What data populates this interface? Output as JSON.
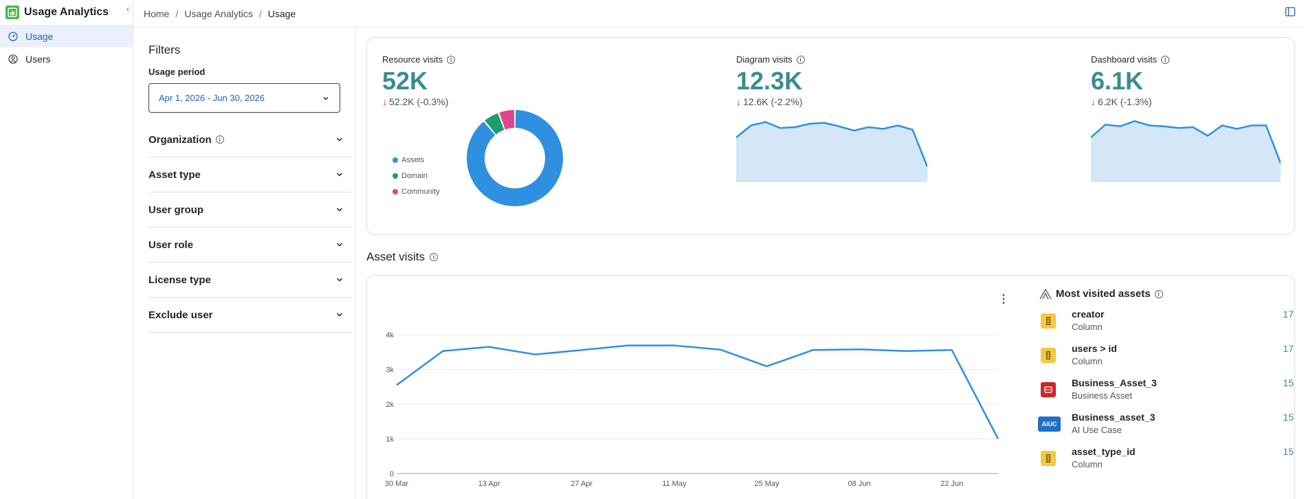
{
  "app": {
    "title": "Usage Analytics"
  },
  "sidebar": {
    "items": [
      {
        "label": "Usage",
        "active": true
      },
      {
        "label": "Users",
        "active": false
      }
    ]
  },
  "breadcrumb": {
    "home": "Home",
    "parent": "Usage Analytics",
    "current": "Usage",
    "separator": "/"
  },
  "filters": {
    "title": "Filters",
    "usage_period_label": "Usage period",
    "usage_period_value": "Apr 1, 2026 - Jun 30, 2026",
    "accordions": [
      {
        "label": "Organization",
        "has_info": true
      },
      {
        "label": "Asset type",
        "has_info": false
      },
      {
        "label": "User group",
        "has_info": false
      },
      {
        "label": "User role",
        "has_info": false
      },
      {
        "label": "License type",
        "has_info": false
      },
      {
        "label": "Exclude user",
        "has_info": false
      }
    ]
  },
  "metrics": {
    "resource": {
      "label": "Resource visits",
      "value": "52K",
      "delta": "52.2K (-0.3%)"
    },
    "diagram": {
      "label": "Diagram visits",
      "value": "12.3K",
      "delta": "12.6K (-2.2%)"
    },
    "dashboard": {
      "label": "Dashboard visits",
      "value": "6.1K",
      "delta": "6.2K (-1.3%)"
    }
  },
  "colors": {
    "accent": "#3b8c92",
    "primary": "#2f8fe0",
    "area_fill": "#d4e7f7",
    "down": "#d83a34",
    "assets": "#2f8fe0",
    "domain": "#1f9c6b",
    "community": "#e0448c"
  },
  "asset_visits": {
    "title": "Asset visits"
  },
  "most_visited": {
    "title": "Most visited assets",
    "items": [
      {
        "name": "creator",
        "type": "Column",
        "count": "17",
        "icon": "column-icon",
        "icon_color": "#f5c842",
        "badge": ""
      },
      {
        "name": "users > id",
        "type": "Column",
        "count": "17",
        "icon": "column-icon",
        "icon_color": "#f5c842",
        "badge": ""
      },
      {
        "name": "Business_Asset_3",
        "type": "Business Asset",
        "count": "15",
        "icon": "business-asset-icon",
        "icon_color": "#c8292b",
        "badge": ""
      },
      {
        "name": "Business_asset_3",
        "type": "AI Use Case",
        "count": "15",
        "icon": "ai-use-case-icon",
        "icon_color": "#1f6fc6",
        "badge": "AIUC"
      },
      {
        "name": "asset_type_id",
        "type": "Column",
        "count": "15",
        "icon": "column-icon",
        "icon_color": "#f5c842",
        "badge": ""
      }
    ]
  },
  "chart_data": [
    {
      "type": "pie",
      "categories": [
        "Assets",
        "Domain",
        "Community"
      ],
      "values": [
        89,
        5.5,
        5.5
      ],
      "donut": true,
      "legend": "left"
    },
    {
      "type": "area",
      "values": [
        5.2,
        6.6,
        7.0,
        6.3,
        6.4,
        6.8,
        6.9,
        6.5,
        6.0,
        6.4,
        6.2,
        6.6,
        6.1,
        1.8
      ],
      "grid": false
    },
    {
      "type": "area",
      "values": [
        5.2,
        6.7,
        6.5,
        7.1,
        6.6,
        6.5,
        6.3,
        6.4,
        5.4,
        6.6,
        6.2,
        6.6,
        6.6,
        2.2
      ],
      "grid": false
    },
    {
      "type": "line",
      "x": [
        "30 Mar",
        "",
        "13 Apr",
        "",
        "27 Apr",
        "",
        "11 May",
        "",
        "25 May",
        "",
        "08 Jun",
        "",
        "22 Jun",
        ""
      ],
      "x_ticks": [
        "30 Mar",
        "13 Apr",
        "27 Apr",
        "11 May",
        "25 May",
        "08 Jun",
        "22 Jun"
      ],
      "y_ticks": [
        "0",
        "1k",
        "2k",
        "3k",
        "4k"
      ],
      "values": [
        2550,
        3530,
        3650,
        3430,
        3560,
        3690,
        3690,
        3570,
        3090,
        3560,
        3580,
        3530,
        3560,
        1000
      ],
      "ylim": [
        0,
        4000
      ],
      "grid": true
    }
  ]
}
